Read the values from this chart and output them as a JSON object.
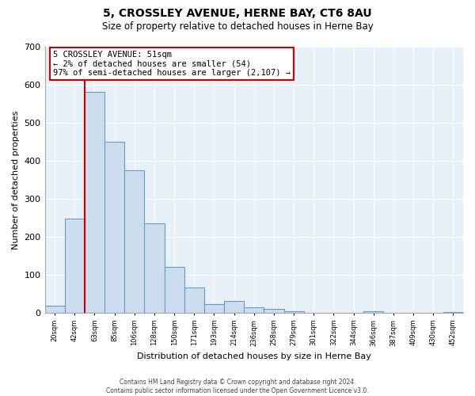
{
  "title": "5, CROSSLEY AVENUE, HERNE BAY, CT6 8AU",
  "subtitle": "Size of property relative to detached houses in Herne Bay",
  "xlabel": "Distribution of detached houses by size in Herne Bay",
  "ylabel": "Number of detached properties",
  "bar_labels": [
    "20sqm",
    "42sqm",
    "63sqm",
    "85sqm",
    "106sqm",
    "128sqm",
    "150sqm",
    "171sqm",
    "193sqm",
    "214sqm",
    "236sqm",
    "258sqm",
    "279sqm",
    "301sqm",
    "322sqm",
    "344sqm",
    "366sqm",
    "387sqm",
    "409sqm",
    "430sqm",
    "452sqm"
  ],
  "bar_values": [
    18,
    248,
    582,
    449,
    374,
    235,
    120,
    67,
    24,
    31,
    14,
    10,
    5,
    0,
    0,
    0,
    5,
    0,
    0,
    0,
    3
  ],
  "bar_color": "#ccddf0",
  "bar_edge_color": "#6699cc",
  "property_line_color": "#cc0000",
  "annotation_box_color": "#ffffff",
  "annotation_box_edge": "#cc0000",
  "ann_line1": "5 CROSSLEY AVENUE: 51sqm",
  "ann_line2": "← 2% of detached houses are smaller (54)",
  "ann_line3": "97% of semi-detached houses are larger (2,107) →",
  "ylim": [
    0,
    700
  ],
  "yticks": [
    0,
    100,
    200,
    300,
    400,
    500,
    600,
    700
  ],
  "footnote": "Contains HM Land Registry data © Crown copyright and database right 2024.\nContains public sector information licensed under the Open Government Licence v3.0.",
  "bg_color": "#ffffff",
  "plot_bg_color": "#e8f0f8",
  "grid_color": "#ffffff"
}
